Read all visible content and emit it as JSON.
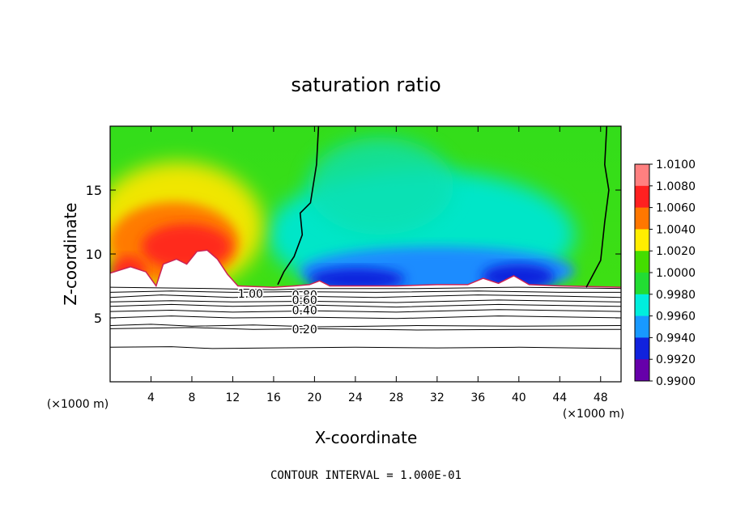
{
  "chart_data": {
    "type": "heatmap",
    "title": "saturation ratio",
    "xlabel": "X-coordinate",
    "ylabel": "Z-coordinate",
    "x_unit": "(×1000 m)",
    "z_unit": "(×1000 m)",
    "xlim": [
      0,
      50
    ],
    "ylim": [
      0,
      20
    ],
    "x_ticks": [
      4,
      8,
      12,
      16,
      20,
      24,
      28,
      32,
      36,
      40,
      44,
      48
    ],
    "y_ticks": [
      5,
      10,
      15
    ],
    "colorbar": {
      "levels": [
        "1.0100",
        "1.0080",
        "1.0060",
        "1.0040",
        "1.0020",
        "1.0000",
        "0.9980",
        "0.9960",
        "0.9940",
        "0.9920",
        "0.9900"
      ],
      "colors": [
        "#ff8080",
        "#ff2020",
        "#ff7700",
        "#ffee00",
        "#44dd00",
        "#22dd33",
        "#00eedd",
        "#1899ff",
        "#1122dd",
        "#6600aa"
      ]
    },
    "contour_labels": [
      {
        "text": "1.00",
        "x": 12.5,
        "y": 6.9
      },
      {
        "text": "0.80",
        "x": 17.8,
        "y": 6.8
      },
      {
        "text": "0.60",
        "x": 17.8,
        "y": 6.4
      },
      {
        "text": "0.40",
        "x": 17.8,
        "y": 5.6
      },
      {
        "text": "0.20",
        "x": 17.8,
        "y": 4.1
      }
    ],
    "contour_lines": [
      {
        "value": 1.0,
        "points": [
          [
            0,
            7.4
          ],
          [
            10,
            7.3
          ],
          [
            16,
            7.2
          ],
          [
            20,
            7.3
          ],
          [
            30,
            7.3
          ],
          [
            40,
            7.4
          ],
          [
            50,
            7.3
          ]
        ]
      },
      {
        "value": 0.9,
        "points": [
          [
            0,
            7.0
          ],
          [
            6,
            7.1
          ],
          [
            12,
            7.0
          ],
          [
            18,
            7.05
          ],
          [
            26,
            7.0
          ],
          [
            36,
            7.1
          ],
          [
            44,
            7.0
          ],
          [
            50,
            7.0
          ]
        ]
      },
      {
        "value": 0.8,
        "points": [
          [
            0,
            6.6
          ],
          [
            5,
            6.8
          ],
          [
            12,
            6.6
          ],
          [
            18,
            6.7
          ],
          [
            26,
            6.6
          ],
          [
            36,
            6.8
          ],
          [
            44,
            6.7
          ],
          [
            50,
            6.6
          ]
        ]
      },
      {
        "value": 0.7,
        "points": [
          [
            0,
            6.25
          ],
          [
            6,
            6.35
          ],
          [
            12,
            6.25
          ],
          [
            20,
            6.3
          ],
          [
            28,
            6.2
          ],
          [
            38,
            6.4
          ],
          [
            50,
            6.25
          ]
        ]
      },
      {
        "value": 0.6,
        "points": [
          [
            0,
            5.9
          ],
          [
            6,
            6.05
          ],
          [
            12,
            5.9
          ],
          [
            20,
            6.0
          ],
          [
            28,
            5.85
          ],
          [
            38,
            6.05
          ],
          [
            50,
            5.9
          ]
        ]
      },
      {
        "value": 0.5,
        "points": [
          [
            0,
            5.5
          ],
          [
            6,
            5.6
          ],
          [
            12,
            5.45
          ],
          [
            20,
            5.55
          ],
          [
            28,
            5.45
          ],
          [
            38,
            5.65
          ],
          [
            50,
            5.5
          ]
        ]
      },
      {
        "value": 0.4,
        "points": [
          [
            0,
            5.0
          ],
          [
            6,
            5.15
          ],
          [
            12,
            5.0
          ],
          [
            20,
            5.05
          ],
          [
            28,
            4.95
          ],
          [
            38,
            5.15
          ],
          [
            50,
            5.0
          ]
        ]
      },
      {
        "value": 0.3,
        "points": [
          [
            0,
            4.4
          ],
          [
            4,
            4.5
          ],
          [
            8,
            4.35
          ],
          [
            14,
            4.45
          ],
          [
            20,
            4.3
          ],
          [
            30,
            4.4
          ],
          [
            40,
            4.35
          ],
          [
            50,
            4.4
          ]
        ]
      },
      {
        "value": 0.2,
        "points": [
          [
            0,
            4.15
          ],
          [
            4,
            4.2
          ],
          [
            8,
            4.25
          ],
          [
            14,
            4.1
          ],
          [
            20,
            4.15
          ],
          [
            30,
            4.05
          ],
          [
            40,
            4.1
          ],
          [
            50,
            4.1
          ]
        ]
      },
      {
        "value": 0.1,
        "points": [
          [
            0,
            2.7
          ],
          [
            6,
            2.75
          ],
          [
            10,
            2.6
          ],
          [
            16,
            2.65
          ],
          [
            24,
            2.7
          ],
          [
            32,
            2.65
          ],
          [
            40,
            2.7
          ],
          [
            50,
            2.6
          ]
        ]
      }
    ],
    "unity_lines": [
      {
        "points": [
          [
            20.4,
            20
          ],
          [
            20.2,
            17
          ],
          [
            19.6,
            14
          ],
          [
            18.6,
            13.2
          ],
          [
            18.8,
            11.5
          ],
          [
            18.0,
            9.8
          ],
          [
            17.0,
            8.6
          ],
          [
            16.4,
            7.6
          ]
        ]
      },
      {
        "points": [
          [
            48.6,
            20
          ],
          [
            48.4,
            17
          ],
          [
            48.8,
            15.0
          ],
          [
            48.4,
            12.5
          ],
          [
            48.0,
            9.5
          ],
          [
            46.6,
            7.4
          ]
        ]
      }
    ],
    "mixed_layer_top": [
      [
        0,
        8.5
      ],
      [
        2,
        9.0
      ],
      [
        3.5,
        8.6
      ],
      [
        4.5,
        7.5
      ],
      [
        5.2,
        9.2
      ],
      [
        6.5,
        9.6
      ],
      [
        7.5,
        9.2
      ],
      [
        8.5,
        10.2
      ],
      [
        9.5,
        10.3
      ],
      [
        10.5,
        9.6
      ],
      [
        11.5,
        8.4
      ],
      [
        12.5,
        7.5
      ],
      [
        16.0,
        7.4
      ],
      [
        18.0,
        7.5
      ],
      [
        19.5,
        7.6
      ],
      [
        20.5,
        7.9
      ],
      [
        21.5,
        7.5
      ],
      [
        28,
        7.5
      ],
      [
        32,
        7.6
      ],
      [
        35,
        7.6
      ],
      [
        36.5,
        8.1
      ],
      [
        38,
        7.7
      ],
      [
        39.5,
        8.3
      ],
      [
        41,
        7.6
      ],
      [
        44,
        7.5
      ],
      [
        50,
        7.4
      ]
    ],
    "footer": "CONTOUR INTERVAL = 1.000E-01"
  }
}
